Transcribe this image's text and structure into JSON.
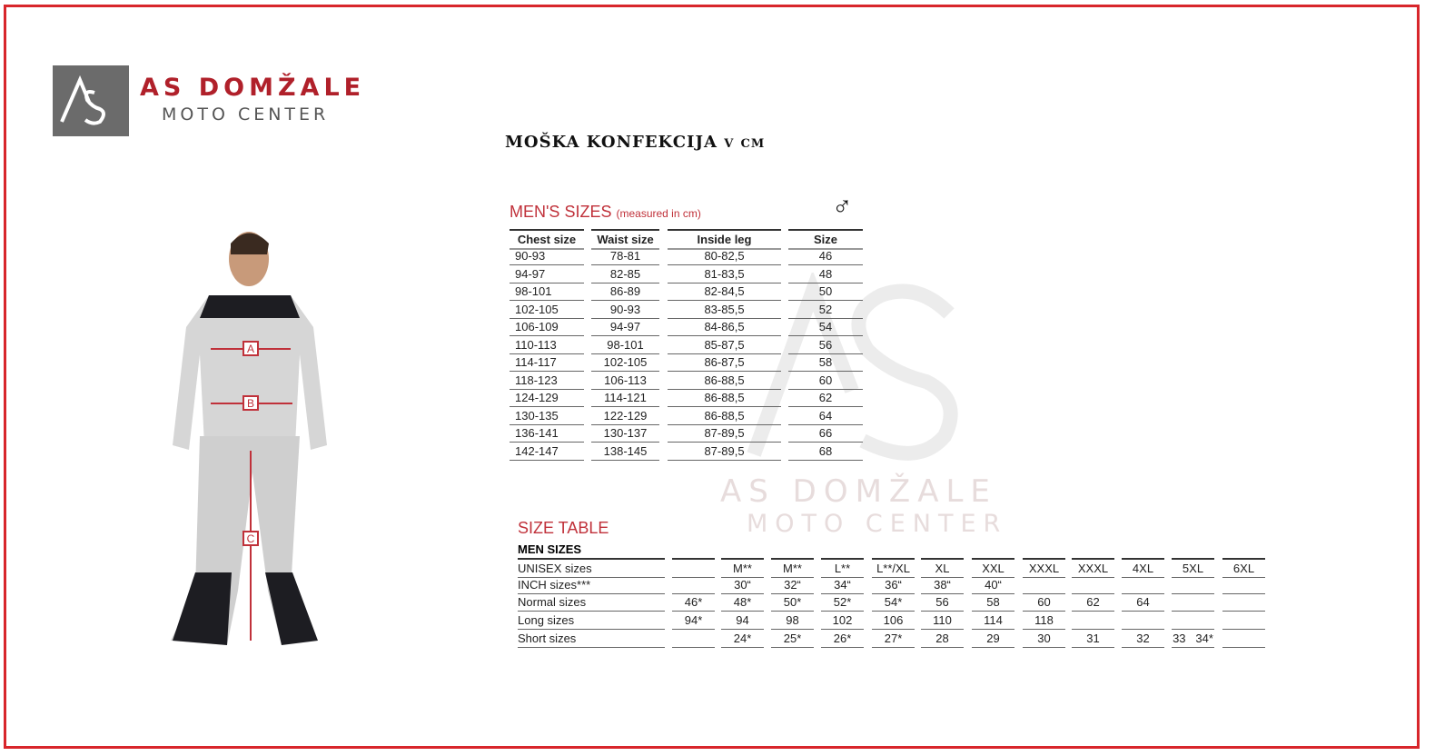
{
  "logo": {
    "mark": "AS",
    "name": "AS DOMŽALE",
    "subtitle": "MOTO CENTER"
  },
  "title": "MOŠKA KONFEKCIJA v cm",
  "mens_sizes": {
    "heading": "MEN'S SIZES",
    "note": "(measured in cm)",
    "icon": "male-symbol-icon",
    "symbol": "♂",
    "columns": [
      "Chest size",
      "Waist size",
      "Inside leg",
      "Size"
    ],
    "rows": [
      [
        "90-93",
        "78-81",
        "80-82,5",
        "46"
      ],
      [
        "94-97",
        "82-85",
        "81-83,5",
        "48"
      ],
      [
        "98-101",
        "86-89",
        "82-84,5",
        "50"
      ],
      [
        "102-105",
        "90-93",
        "83-85,5",
        "52"
      ],
      [
        "106-109",
        "94-97",
        "84-86,5",
        "54"
      ],
      [
        "110-113",
        "98-101",
        "85-87,5",
        "56"
      ],
      [
        "114-117",
        "102-105",
        "86-87,5",
        "58"
      ],
      [
        "118-123",
        "106-113",
        "86-88,5",
        "60"
      ],
      [
        "124-129",
        "114-121",
        "86-88,5",
        "62"
      ],
      [
        "130-135",
        "122-129",
        "86-88,5",
        "64"
      ],
      [
        "136-141",
        "130-137",
        "87-89,5",
        "66"
      ],
      [
        "142-147",
        "138-145",
        "87-89,5",
        "68"
      ]
    ]
  },
  "size_table": {
    "heading": "SIZE TABLE",
    "subheading": "MEN SIZES",
    "rows": [
      {
        "label": "UNISEX sizes",
        "values": [
          "",
          "M**",
          "M**",
          "L**",
          "L**/XL",
          "XL",
          "XXL",
          "XXXL",
          "XXXL",
          "4XL",
          "5XL",
          "6XL"
        ]
      },
      {
        "label": "INCH sizes***",
        "values": [
          "",
          "30“",
          "32“",
          "34“",
          "36“",
          "38“",
          "40“",
          "",
          "",
          "",
          "",
          ""
        ]
      },
      {
        "label": "Normal sizes",
        "values": [
          "46*",
          "48*",
          "50*",
          "52*",
          "54*",
          "56",
          "58",
          "60",
          "62",
          "64",
          "",
          ""
        ]
      },
      {
        "label": "Long sizes",
        "values": [
          "94*",
          "94",
          "98",
          "102",
          "106",
          "110",
          "114",
          "118",
          "",
          "",
          "",
          ""
        ]
      },
      {
        "label": "Short sizes",
        "values": [
          "",
          "24*",
          "25*",
          "26*",
          "27*",
          "28",
          "29",
          "30",
          "31",
          "32",
          "33   34*",
          ""
        ]
      }
    ]
  },
  "figure": {
    "markers": [
      "A",
      "B",
      "C"
    ]
  },
  "watermark": {
    "mark": "AS",
    "name": "AS DOMŽALE",
    "subtitle": "MOTO CENTER"
  },
  "colors": {
    "accent": "#c0313a",
    "frame": "#d8262b",
    "logo_bg": "#6b6b6b"
  }
}
